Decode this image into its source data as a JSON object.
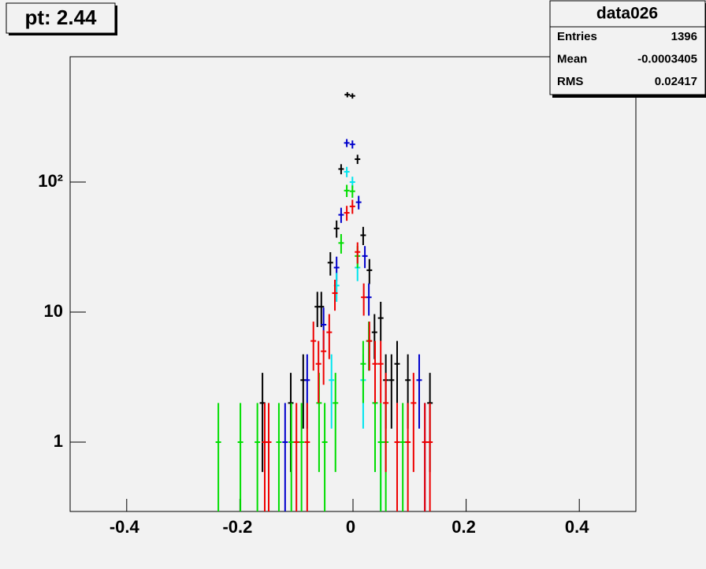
{
  "chart_data": {
    "type": "errorbar",
    "title": "pt: 2.44",
    "stats": {
      "name": "data026",
      "rows": [
        [
          "Entries",
          "1396"
        ],
        [
          "Mean",
          "-0.0003405"
        ],
        [
          "RMS",
          "0.02417"
        ]
      ]
    },
    "xlim": [
      -0.5,
      0.5
    ],
    "xticks": [
      -0.4,
      -0.2,
      0,
      0.2,
      0.4
    ],
    "ylim": [
      0.293,
      920
    ],
    "log_y": true,
    "yticks": [
      1,
      10,
      {
        "value": 100,
        "label": "10²"
      }
    ],
    "series": [
      {
        "color": "#000000",
        "x": [
          -0.16,
          -0.11,
          -0.088,
          -0.063,
          -0.056,
          -0.04,
          -0.029,
          -0.021,
          -0.01,
          -0.001,
          0.008,
          0.018,
          0.029,
          0.038,
          0.049,
          0.058,
          0.068,
          0.078,
          0.097,
          0.136
        ],
        "values": [
          2,
          2,
          3,
          11,
          11,
          24,
          44,
          126,
          470,
          460,
          150,
          39,
          21,
          7,
          9,
          3,
          3,
          4,
          3,
          2
        ],
        "errors": [
          1.41,
          1.41,
          1.73,
          3.32,
          3.32,
          4.9,
          6.63,
          11.22,
          21.68,
          21.45,
          12.25,
          6.24,
          4.58,
          2.65,
          3,
          1.73,
          1.73,
          2,
          1.73,
          1.41
        ]
      },
      {
        "color": "#0000cc",
        "x": [
          -0.12,
          -0.081,
          -0.052,
          -0.029,
          -0.021,
          -0.011,
          -0.001,
          0.01,
          0.021,
          0.028,
          0.117,
          0.127
        ],
        "values": [
          1,
          3,
          8,
          22,
          56,
          200,
          195,
          70,
          27,
          13,
          3,
          1
        ],
        "errors": [
          1,
          1.73,
          2.83,
          4.69,
          7.48,
          14.14,
          13.96,
          8.37,
          5.2,
          3.61,
          1.73,
          1
        ]
      },
      {
        "color": "#00e5ee",
        "x": [
          -0.038,
          -0.029,
          -0.011,
          -0.001,
          0.008,
          0.018,
          0.028,
          0.039,
          0.049
        ],
        "values": [
          3,
          16,
          120,
          100,
          22,
          3,
          6,
          2,
          1
        ],
        "errors": [
          1.73,
          4,
          10.95,
          10,
          4.69,
          1.73,
          2.45,
          1.41,
          1
        ]
      },
      {
        "color": "#00dd00",
        "x": [
          -0.238,
          -0.199,
          -0.169,
          -0.131,
          -0.109,
          -0.091,
          -0.06,
          -0.05,
          -0.031,
          -0.021,
          -0.011,
          -0.001,
          0.008,
          0.018,
          0.028,
          0.039,
          0.049,
          0.058,
          0.088
        ],
        "values": [
          1,
          1,
          1,
          1,
          1,
          1,
          2,
          1,
          2,
          34,
          86,
          85,
          27,
          4,
          6,
          2,
          1,
          1,
          1
        ],
        "errors": [
          1,
          1,
          1,
          1,
          1,
          1,
          1.41,
          1,
          1.41,
          5.83,
          9.27,
          9.22,
          5.2,
          2,
          2.45,
          1.41,
          1,
          1,
          1
        ]
      },
      {
        "color": "#ee0000",
        "x": [
          -0.156,
          -0.149,
          -0.1,
          -0.081,
          -0.07,
          -0.061,
          -0.052,
          -0.042,
          -0.032,
          -0.011,
          -0.001,
          0.008,
          0.019,
          0.029,
          0.039,
          0.049,
          0.058,
          0.078,
          0.097,
          0.107,
          0.127,
          0.136
        ],
        "values": [
          1,
          1,
          1,
          1,
          6,
          4,
          5,
          7,
          14,
          58,
          65,
          29,
          13,
          6,
          4,
          4,
          2,
          1,
          1,
          2,
          1,
          1
        ],
        "errors": [
          1,
          1,
          1,
          1,
          2.45,
          2,
          2.24,
          2.65,
          3.74,
          7.62,
          8.06,
          5.39,
          3.61,
          2.45,
          2,
          2,
          1.41,
          1,
          1,
          1.41,
          1,
          1
        ]
      }
    ]
  }
}
